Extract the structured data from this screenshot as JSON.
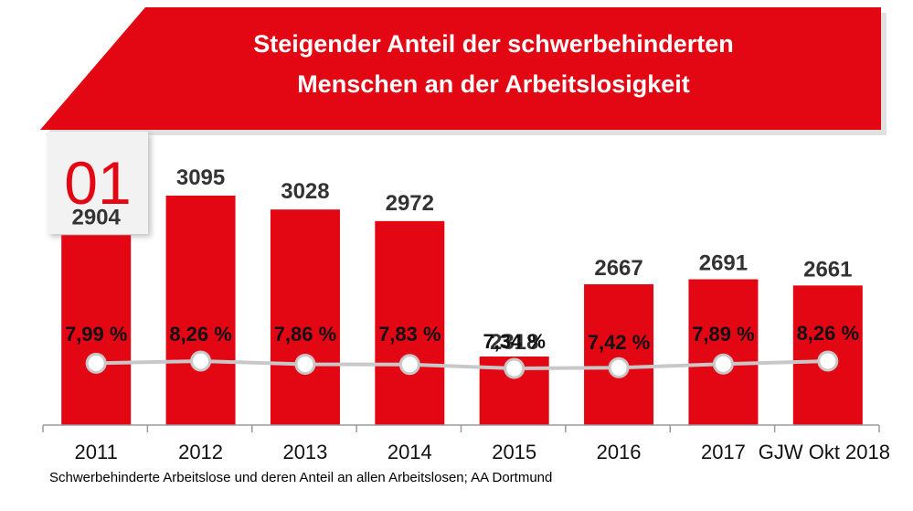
{
  "header": {
    "title_line1": "Steigender Anteil der schwerbehinderten",
    "title_line2": "Menschen an der Arbeitslosigkeit"
  },
  "badge": {
    "number": "01"
  },
  "source": "Schwerbehinderte Arbeitslose und deren Anteil an allen Arbeitslosen; AA Dortmund",
  "colors": {
    "accent": "#e30613",
    "line": "#c8c8c8",
    "badge_bg": "#f2f2f2"
  },
  "chart_data": {
    "type": "bar",
    "categories": [
      "2011",
      "2012",
      "2013",
      "2014",
      "2015",
      "2016",
      "2017",
      "GJW Okt 2018"
    ],
    "series": [
      {
        "type": "bar",
        "values": [
          2904,
          3095,
          3028,
          2972,
          2318,
          2667,
          2691,
          2661
        ],
        "labels": [
          "2904",
          "3095",
          "3028",
          "2972",
          "2318",
          "2667",
          "2691",
          "2661"
        ]
      },
      {
        "type": "line",
        "values": [
          7.99,
          8.26,
          7.86,
          7.83,
          7.34,
          7.42,
          7.89,
          8.26
        ],
        "labels": [
          "7,99 %",
          "8,26 %",
          "7,86 %",
          "7,83 %",
          "7,34 %",
          "7,42 %",
          "7,89 %",
          "8,26 %"
        ]
      }
    ],
    "grid": false,
    "legend": "none"
  }
}
